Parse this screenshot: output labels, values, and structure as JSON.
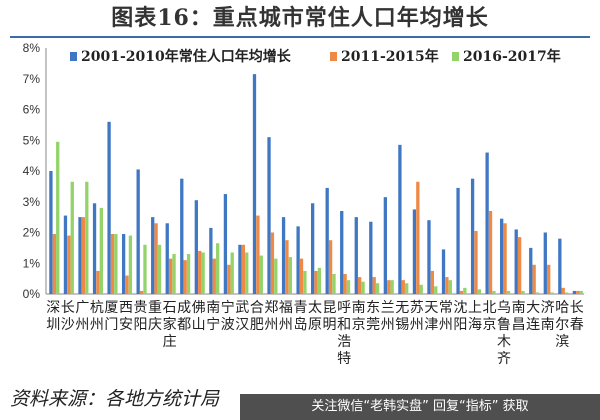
{
  "title": "图表16：重点城市常住人口年均增长",
  "source": "资料来源：各地方统计局",
  "watermark": "关注微信“老韩实盘” 回复“指标” 获取",
  "colors": {
    "s1": "#3f77c3",
    "s2": "#ee8a45",
    "s3": "#93d36a",
    "grid": "#d9d9d9",
    "axis": "#888888",
    "title_rule": "#3a6da8"
  },
  "chart_data": {
    "type": "bar",
    "title": "",
    "xlabel": "",
    "ylabel": "",
    "ylim": [
      0,
      8
    ],
    "yticks": [
      "0%",
      "1%",
      "2%",
      "3%",
      "4%",
      "5%",
      "6%",
      "7%",
      "8%"
    ],
    "grid": false,
    "legend_position": "top",
    "categories": [
      "深圳",
      "长沙",
      "广州",
      "杭州",
      "厦门",
      "西安",
      "贵阳",
      "重庆",
      "石家庄",
      "成都",
      "佛山",
      "南宁",
      "宁波",
      "武汉",
      "合肥",
      "郑州",
      "福州",
      "青岛",
      "太原",
      "昆明",
      "呼和浩特",
      "南京",
      "东莞",
      "兰州",
      "无锡",
      "苏州",
      "天津",
      "常州",
      "沈阳",
      "上海",
      "北京",
      "乌鲁木齐",
      "南昌",
      "大连",
      "济南",
      "哈尔滨",
      "长春"
    ],
    "series": [
      {
        "name": "2001-2010年常住人口年均增长",
        "values": [
          4.0,
          2.55,
          2.5,
          2.95,
          5.6,
          1.95,
          4.05,
          2.5,
          2.3,
          3.75,
          3.05,
          2.15,
          3.25,
          1.6,
          7.15,
          5.1,
          2.5,
          2.2,
          2.95,
          3.45,
          2.7,
          2.5,
          2.35,
          3.15,
          4.85,
          2.75,
          2.4,
          1.45,
          3.45,
          3.75,
          4.6,
          2.45,
          2.1,
          1.5,
          2.0,
          1.8,
          0.1
        ]
      },
      {
        "name": "2011-2015年",
        "values": [
          1.95,
          1.9,
          2.5,
          0.75,
          1.95,
          0.6,
          0.1,
          2.3,
          1.15,
          1.1,
          1.4,
          1.15,
          0.95,
          1.6,
          2.55,
          2.0,
          1.75,
          1.15,
          0.75,
          1.75,
          0.65,
          0.55,
          0.55,
          0.45,
          0.45,
          3.65,
          0.75,
          0.55,
          0.1,
          2.05,
          2.7,
          2.3,
          1.85,
          0.95,
          0.95,
          0.2,
          0.1
        ]
      },
      {
        "name": "2016-2017年",
        "values": [
          4.95,
          3.65,
          3.65,
          2.8,
          1.95,
          1.9,
          1.6,
          1.6,
          1.3,
          1.3,
          1.35,
          1.65,
          1.35,
          1.35,
          1.25,
          1.15,
          1.2,
          0.75,
          0.85,
          0.65,
          0.45,
          0.4,
          0.35,
          0.45,
          0.35,
          0.3,
          0.25,
          0.45,
          0.2,
          0.15,
          0.1,
          0.1,
          0.1,
          0.05,
          0.05,
          0.05,
          0.1
        ]
      }
    ]
  }
}
